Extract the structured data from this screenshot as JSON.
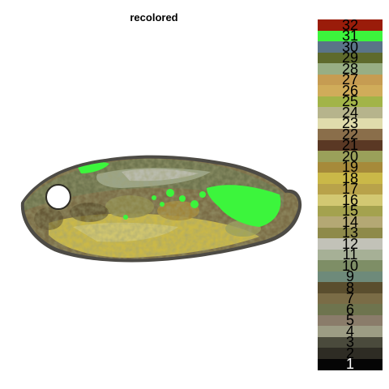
{
  "title": "recolored",
  "palette": [
    {
      "label": "32",
      "color": "#9a1c0a"
    },
    {
      "label": "31",
      "color": "#3cf53c"
    },
    {
      "label": "30",
      "color": "#5a7488"
    },
    {
      "label": "29",
      "color": "#5e6a2c"
    },
    {
      "label": "28",
      "color": "#98ae84"
    },
    {
      "label": "27",
      "color": "#c69c52"
    },
    {
      "label": "26",
      "color": "#d0ac5a"
    },
    {
      "label": "25",
      "color": "#a2b448"
    },
    {
      "label": "24",
      "color": "#b6b48c"
    },
    {
      "label": "23",
      "color": "#e0dcac"
    },
    {
      "label": "22",
      "color": "#8a6e4a"
    },
    {
      "label": "21",
      "color": "#5a3824"
    },
    {
      "label": "20",
      "color": "#9aa05a"
    },
    {
      "label": "19",
      "color": "#a68a3a"
    },
    {
      "label": "18",
      "color": "#cab848"
    },
    {
      "label": "17",
      "color": "#b8a24a"
    },
    {
      "label": "16",
      "color": "#d2c872"
    },
    {
      "label": "15",
      "color": "#a4a24e"
    },
    {
      "label": "14",
      "color": "#b4a874"
    },
    {
      "label": "13",
      "color": "#8e8a4a"
    },
    {
      "label": "12",
      "color": "#c2c2b8"
    },
    {
      "label": "11",
      "color": "#a6b096"
    },
    {
      "label": "10",
      "color": "#7e8e66"
    },
    {
      "label": "9",
      "color": "#6e8a7a"
    },
    {
      "label": "8",
      "color": "#5a4e2e"
    },
    {
      "label": "7",
      "color": "#7a6c46"
    },
    {
      "label": "6",
      "color": "#6e744e"
    },
    {
      "label": "5",
      "color": "#8a7c6a"
    },
    {
      "label": "4",
      "color": "#9c9c84"
    },
    {
      "label": "3",
      "color": "#4a4a3c"
    },
    {
      "label": "2",
      "color": "#2e2c24"
    },
    {
      "label": "1",
      "color": "#050505"
    }
  ]
}
